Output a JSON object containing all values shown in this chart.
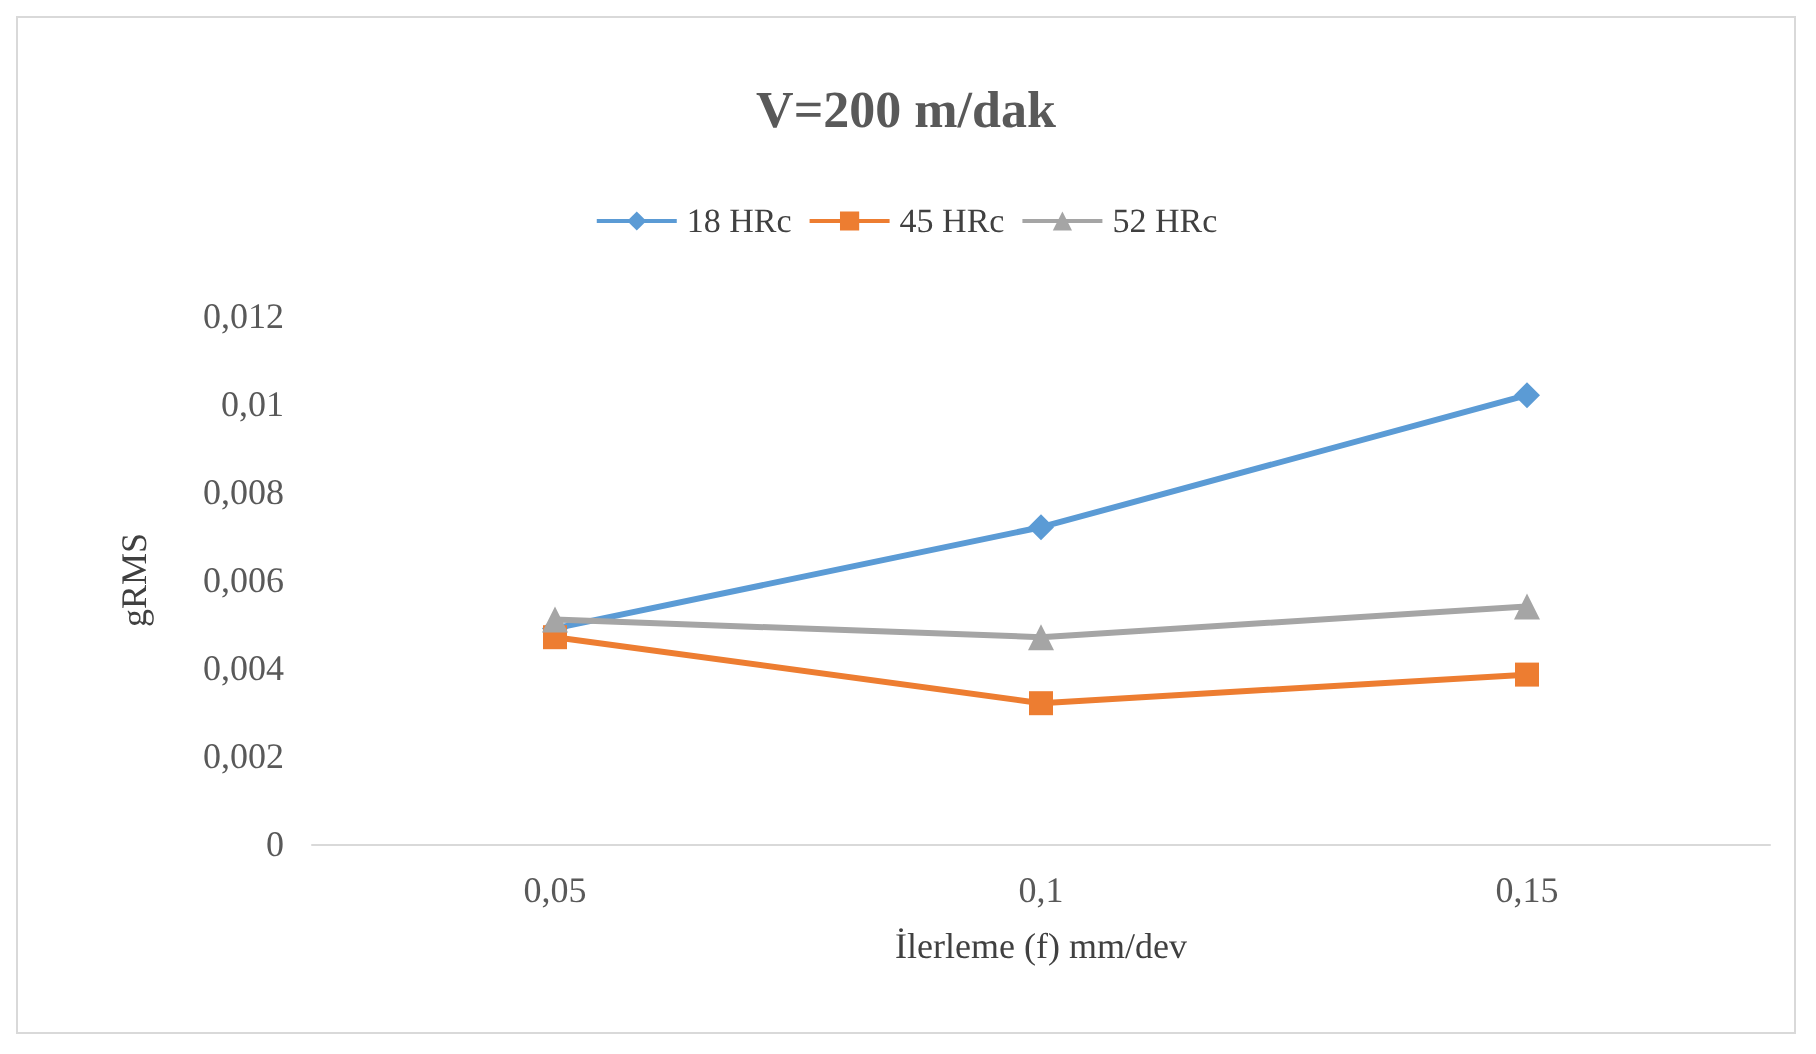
{
  "chart_data": {
    "type": "line",
    "title": "V=200 m/dak",
    "xlabel": "İlerleme (f) mm/dev",
    "ylabel": "gRMS",
    "categories": [
      "0,05",
      "0,1",
      "0,15"
    ],
    "series": [
      {
        "name": "18 HRc",
        "color": "#5b9bd5",
        "marker": "diamond",
        "values": [
          0.0049,
          0.0072,
          0.0102
        ]
      },
      {
        "name": "45 HRc",
        "color": "#ed7d31",
        "marker": "square",
        "values": [
          0.0047,
          0.0032,
          0.00385
        ]
      },
      {
        "name": "52 HRc",
        "color": "#a5a5a5",
        "marker": "triangle",
        "values": [
          0.0051,
          0.0047,
          0.0054
        ]
      }
    ],
    "ylim": [
      0,
      0.012
    ],
    "yticks": [
      {
        "value": 0,
        "label": "0"
      },
      {
        "value": 0.002,
        "label": "0,002"
      },
      {
        "value": 0.004,
        "label": "0,004"
      },
      {
        "value": 0.006,
        "label": "0,006"
      },
      {
        "value": 0.008,
        "label": "0,008"
      },
      {
        "value": 0.01,
        "label": "0,01"
      },
      {
        "value": 0.012,
        "label": "0,012"
      }
    ],
    "grid": false,
    "legend": "top",
    "line_style": "solid"
  }
}
